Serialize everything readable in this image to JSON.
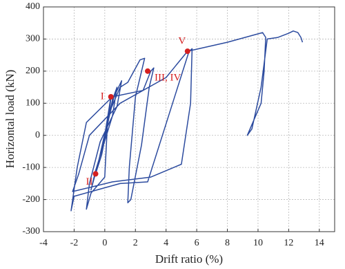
{
  "chart_data": {
    "type": "line",
    "x_label": "Drift ratio (%)",
    "y_label": "Horizontal  load (kN)",
    "xlim": [
      -4,
      15
    ],
    "xticks": [
      -4,
      -2,
      0,
      2,
      4,
      6,
      8,
      10,
      12,
      14
    ],
    "ylim": [
      -300,
      400
    ],
    "yticks": [
      -300,
      -200,
      -100,
      0,
      100,
      200,
      300,
      400
    ],
    "grid": true,
    "color": "#2b4a9e",
    "x": [
      0,
      0.4,
      0.3,
      -0.4,
      -0.6,
      -0.2,
      0.5,
      0.8,
      0.5,
      -0.6,
      -0.9,
      -0.5,
      0.6,
      1.1,
      0.8,
      -0.3,
      -1.0,
      -1.2,
      -0.9,
      0.0,
      0.2,
      1.0,
      1.5,
      2.3,
      2.6,
      2.5,
      2.0,
      1.6,
      1.5,
      1.7,
      2.4,
      2.9,
      3.2,
      3.0,
      2.5,
      0.5,
      -1.2,
      -1.8,
      -2.2,
      -2.0,
      -0.5,
      1.0,
      2.8,
      5.5,
      5.7,
      5.6,
      5.0,
      3.0,
      0.5,
      -2.1,
      -1.7,
      -1.0,
      1.0,
      4.0,
      5.4,
      8.0,
      10.3,
      10.5,
      10.4,
      10.2,
      9.3,
      9.6,
      10.2,
      10.6,
      11.3,
      12.0,
      12.3,
      12.6,
      12.8,
      12.9
    ],
    "values": [
      0,
      120,
      70,
      -80,
      -120,
      -60,
      110,
      150,
      60,
      -110,
      -170,
      -100,
      120,
      170,
      90,
      -20,
      -150,
      -230,
      -180,
      -130,
      60,
      150,
      165,
      235,
      240,
      220,
      120,
      -100,
      -210,
      -200,
      -30,
      150,
      210,
      200,
      140,
      120,
      40,
      -100,
      -235,
      -190,
      -170,
      -150,
      -145,
      262,
      270,
      100,
      -90,
      -130,
      -145,
      -175,
      -120,
      0,
      100,
      180,
      262,
      290,
      320,
      305,
      200,
      100,
      0,
      20,
      150,
      300,
      305,
      318,
      325,
      320,
      305,
      290
    ],
    "points": [
      {
        "label": "I",
        "x": 0.4,
        "y": 120
      },
      {
        "label": "II",
        "x": -0.6,
        "y": -120
      },
      {
        "label": "III, IV",
        "x": 2.8,
        "y": 200
      },
      {
        "label": "V",
        "x": 5.4,
        "y": 262
      }
    ]
  }
}
